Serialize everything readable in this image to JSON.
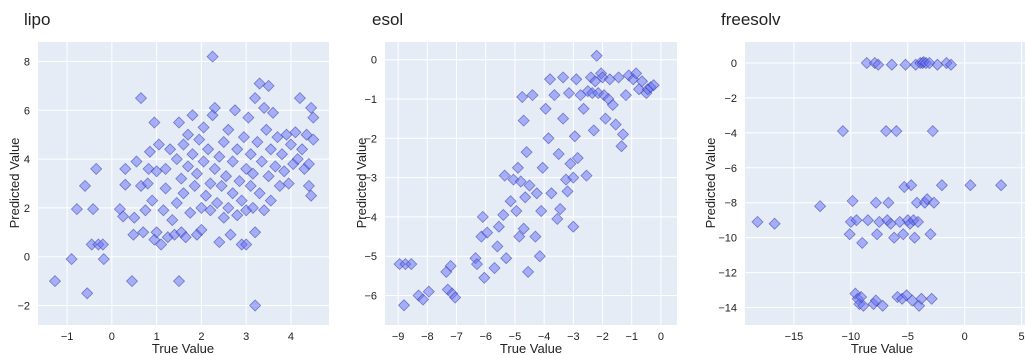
{
  "colors": {
    "plot_bg": "#e5ecf6",
    "grid": "#ffffff",
    "marker_fill": "#636efa",
    "marker_stroke": "#3a3fa3"
  },
  "chart_data": [
    {
      "type": "scatter",
      "title": "lipo",
      "xlabel": "True Value",
      "ylabel": "Predicted Value",
      "xlim": [
        -1.65,
        4.85
      ],
      "ylim": [
        -2.8,
        8.8
      ],
      "xticks": [
        -1,
        0,
        1,
        2,
        3,
        4
      ],
      "yticks": [
        -2,
        0,
        2,
        4,
        6,
        8
      ],
      "grid": true,
      "marker": "diamond",
      "points": [
        [
          -1.27,
          -1.0
        ],
        [
          -0.9,
          -0.1
        ],
        [
          -0.78,
          1.95
        ],
        [
          -0.6,
          2.9
        ],
        [
          -0.55,
          -1.5
        ],
        [
          -0.45,
          0.5
        ],
        [
          -0.42,
          1.95
        ],
        [
          -0.35,
          3.6
        ],
        [
          -0.3,
          0.5
        ],
        [
          -0.2,
          0.5
        ],
        [
          -0.18,
          -0.1
        ],
        [
          0.18,
          1.95
        ],
        [
          0.25,
          1.65
        ],
        [
          0.3,
          2.95
        ],
        [
          0.3,
          3.6
        ],
        [
          0.45,
          -1.0
        ],
        [
          0.48,
          0.9
        ],
        [
          0.5,
          1.6
        ],
        [
          0.55,
          3.9
        ],
        [
          0.65,
          6.5
        ],
        [
          0.65,
          2.9
        ],
        [
          0.7,
          1.0
        ],
        [
          0.75,
          1.9
        ],
        [
          0.8,
          3.0
        ],
        [
          0.82,
          3.6
        ],
        [
          0.85,
          4.3
        ],
        [
          0.9,
          2.3
        ],
        [
          0.95,
          5.5
        ],
        [
          0.95,
          0.7
        ],
        [
          1.0,
          1.0
        ],
        [
          1.0,
          3.5
        ],
        [
          1.05,
          4.6
        ],
        [
          1.1,
          0.5
        ],
        [
          1.15,
          1.9
        ],
        [
          1.2,
          2.8
        ],
        [
          1.2,
          3.6
        ],
        [
          1.25,
          0.8
        ],
        [
          1.3,
          4.4
        ],
        [
          1.35,
          1.5
        ],
        [
          1.4,
          0.9
        ],
        [
          1.45,
          2.2
        ],
        [
          1.45,
          4.0
        ],
        [
          1.5,
          5.5
        ],
        [
          1.5,
          -1.0
        ],
        [
          1.55,
          3.2
        ],
        [
          1.55,
          1.0
        ],
        [
          1.6,
          2.6
        ],
        [
          1.6,
          4.6
        ],
        [
          1.65,
          0.8
        ],
        [
          1.7,
          3.7
        ],
        [
          1.7,
          5.0
        ],
        [
          1.75,
          1.8
        ],
        [
          1.8,
          4.2
        ],
        [
          1.8,
          5.8
        ],
        [
          1.85,
          2.9
        ],
        [
          1.9,
          0.9
        ],
        [
          1.9,
          3.4
        ],
        [
          1.95,
          4.8
        ],
        [
          2.0,
          2.0
        ],
        [
          2.0,
          1.1
        ],
        [
          2.05,
          3.9
        ],
        [
          2.05,
          5.3
        ],
        [
          2.1,
          2.5
        ],
        [
          2.15,
          4.4
        ],
        [
          2.2,
          3.0
        ],
        [
          2.2,
          1.9
        ],
        [
          2.25,
          8.2
        ],
        [
          2.25,
          5.8
        ],
        [
          2.3,
          3.6
        ],
        [
          2.3,
          6.1
        ],
        [
          2.35,
          2.2
        ],
        [
          2.4,
          4.1
        ],
        [
          2.4,
          0.6
        ],
        [
          2.45,
          2.9
        ],
        [
          2.5,
          4.7
        ],
        [
          2.5,
          1.6
        ],
        [
          2.55,
          3.3
        ],
        [
          2.6,
          2.0
        ],
        [
          2.6,
          5.2
        ],
        [
          2.65,
          0.9
        ],
        [
          2.7,
          3.9
        ],
        [
          2.7,
          2.6
        ],
        [
          2.75,
          6.0
        ],
        [
          2.8,
          4.4
        ],
        [
          2.8,
          1.7
        ],
        [
          2.85,
          3.1
        ],
        [
          2.9,
          2.3
        ],
        [
          2.9,
          0.5
        ],
        [
          2.95,
          4.9
        ],
        [
          3.0,
          3.6
        ],
        [
          3.0,
          1.9
        ],
        [
          3.0,
          0.5
        ],
        [
          3.05,
          5.7
        ],
        [
          3.1,
          2.9
        ],
        [
          3.1,
          4.2
        ],
        [
          3.15,
          2.0
        ],
        [
          3.15,
          3.4
        ],
        [
          3.2,
          -2.0
        ],
        [
          3.2,
          1.0
        ],
        [
          3.2,
          6.5
        ],
        [
          3.25,
          4.7
        ],
        [
          3.3,
          2.6
        ],
        [
          3.3,
          7.1
        ],
        [
          3.35,
          3.9
        ],
        [
          3.4,
          6.1
        ],
        [
          3.4,
          1.9
        ],
        [
          3.45,
          5.2
        ],
        [
          3.5,
          7.0
        ],
        [
          3.5,
          3.3
        ],
        [
          3.55,
          4.4
        ],
        [
          3.55,
          2.3
        ],
        [
          3.6,
          5.9
        ],
        [
          3.65,
          3.7
        ],
        [
          3.7,
          4.9
        ],
        [
          3.75,
          2.9
        ],
        [
          3.8,
          4.2
        ],
        [
          3.85,
          3.5
        ],
        [
          3.9,
          5.0
        ],
        [
          3.95,
          3.0
        ],
        [
          4.0,
          4.6
        ],
        [
          4.05,
          3.8
        ],
        [
          4.1,
          5.1
        ],
        [
          4.15,
          4.0
        ],
        [
          4.2,
          6.5
        ],
        [
          4.25,
          4.4
        ],
        [
          4.3,
          3.6
        ],
        [
          4.35,
          5.0
        ],
        [
          4.4,
          3.8
        ],
        [
          4.45,
          6.1
        ],
        [
          4.45,
          2.5
        ],
        [
          4.5,
          5.7
        ],
        [
          4.5,
          4.8
        ],
        [
          4.4,
          2.9
        ]
      ]
    },
    {
      "type": "scatter",
      "title": "esol",
      "xlabel": "True Value",
      "ylabel": "Predicted Value",
      "xlim": [
        -9.45,
        0.55
      ],
      "ylim": [
        -6.75,
        0.45
      ],
      "xticks": [
        -9,
        -8,
        -7,
        -6,
        -5,
        -4,
        -3,
        -2,
        -1,
        0
      ],
      "yticks": [
        -6,
        -5,
        -4,
        -3,
        -2,
        -1,
        0
      ],
      "grid": true,
      "marker": "diamond",
      "points": [
        [
          -8.95,
          -5.2
        ],
        [
          -8.8,
          -6.25
        ],
        [
          -8.75,
          -5.2
        ],
        [
          -8.55,
          -5.2
        ],
        [
          -8.3,
          -6.0
        ],
        [
          -8.15,
          -6.1
        ],
        [
          -7.95,
          -5.9
        ],
        [
          -7.35,
          -5.4
        ],
        [
          -7.3,
          -5.85
        ],
        [
          -7.2,
          -5.25
        ],
        [
          -7.15,
          -5.95
        ],
        [
          -7.05,
          -6.05
        ],
        [
          -6.35,
          -5.05
        ],
        [
          -6.3,
          -5.2
        ],
        [
          -6.15,
          -4.5
        ],
        [
          -6.1,
          -4.0
        ],
        [
          -6.05,
          -5.55
        ],
        [
          -5.95,
          -4.4
        ],
        [
          -5.7,
          -5.3
        ],
        [
          -5.6,
          -4.75
        ],
        [
          -5.55,
          -4.25
        ],
        [
          -5.4,
          -3.95
        ],
        [
          -5.35,
          -2.95
        ],
        [
          -5.3,
          -5.05
        ],
        [
          -5.15,
          -3.6
        ],
        [
          -5.05,
          -3.05
        ],
        [
          -4.95,
          -3.85
        ],
        [
          -4.9,
          -2.75
        ],
        [
          -4.85,
          -4.5
        ],
        [
          -4.8,
          -3.1
        ],
        [
          -4.75,
          -0.95
        ],
        [
          -4.7,
          -1.55
        ],
        [
          -4.7,
          -4.3
        ],
        [
          -4.65,
          -3.5
        ],
        [
          -4.6,
          -2.35
        ],
        [
          -4.55,
          -5.4
        ],
        [
          -4.5,
          -3.2
        ],
        [
          -4.4,
          -0.9
        ],
        [
          -4.3,
          -4.5
        ],
        [
          -4.25,
          -3.4
        ],
        [
          -4.15,
          -5.0
        ],
        [
          -4.1,
          -3.85
        ],
        [
          -4.05,
          -2.75
        ],
        [
          -3.95,
          -1.25
        ],
        [
          -3.85,
          -2.0
        ],
        [
          -3.8,
          -0.5
        ],
        [
          -3.75,
          -3.4
        ],
        [
          -3.65,
          -0.9
        ],
        [
          -3.55,
          -4.05
        ],
        [
          -3.5,
          -2.4
        ],
        [
          -3.45,
          -3.8
        ],
        [
          -3.35,
          -0.45
        ],
        [
          -3.35,
          -1.5
        ],
        [
          -3.25,
          -3.05
        ],
        [
          -3.2,
          -3.35
        ],
        [
          -3.15,
          -0.85
        ],
        [
          -3.1,
          -2.65
        ],
        [
          -3.0,
          -4.25
        ],
        [
          -3.0,
          -3.0
        ],
        [
          -2.95,
          -1.95
        ],
        [
          -2.9,
          -0.5
        ],
        [
          -2.85,
          -2.5
        ],
        [
          -2.75,
          -0.9
        ],
        [
          -2.65,
          -1.25
        ],
        [
          -2.55,
          -2.95
        ],
        [
          -2.5,
          -0.8
        ],
        [
          -2.4,
          -0.45
        ],
        [
          -2.35,
          -0.85
        ],
        [
          -2.3,
          -1.8
        ],
        [
          -2.25,
          -0.55
        ],
        [
          -2.2,
          0.1
        ],
        [
          -2.15,
          -0.85
        ],
        [
          -2.05,
          -0.35
        ],
        [
          -2.0,
          -0.45
        ],
        [
          -1.95,
          -0.9
        ],
        [
          -1.9,
          -1.5
        ],
        [
          -1.8,
          -1.0
        ],
        [
          -1.75,
          -0.5
        ],
        [
          -1.65,
          -1.15
        ],
        [
          -1.55,
          -1.65
        ],
        [
          -1.45,
          -0.45
        ],
        [
          -1.35,
          -2.2
        ],
        [
          -1.3,
          -1.9
        ],
        [
          -1.2,
          -0.9
        ],
        [
          -1.1,
          -0.4
        ],
        [
          -0.95,
          -0.5
        ],
        [
          -0.85,
          -0.35
        ],
        [
          -0.75,
          -0.75
        ],
        [
          -0.65,
          -0.55
        ],
        [
          -0.5,
          -0.85
        ],
        [
          -0.45,
          -0.75
        ],
        [
          -0.35,
          -0.7
        ],
        [
          -0.25,
          -0.65
        ]
      ]
    },
    {
      "type": "scatter",
      "title": "freesolv",
      "xlabel": "True Value",
      "ylabel": "Predicted Value",
      "xlim": [
        -19.3,
        5.3
      ],
      "ylim": [
        -15.0,
        1.2
      ],
      "xticks": [
        -15,
        -10,
        -5,
        0,
        5
      ],
      "yticks": [
        -14,
        -12,
        -10,
        -8,
        -6,
        -4,
        -2,
        0
      ],
      "grid": true,
      "marker": "diamond",
      "points": [
        [
          -18.2,
          -9.1
        ],
        [
          -16.7,
          -9.2
        ],
        [
          -12.7,
          -8.2
        ],
        [
          -10.7,
          -3.9
        ],
        [
          -10.1,
          -9.8
        ],
        [
          -10.0,
          -9.1
        ],
        [
          -9.85,
          -7.9
        ],
        [
          -9.6,
          -13.2
        ],
        [
          -9.5,
          -9.0
        ],
        [
          -9.4,
          -13.5
        ],
        [
          -9.25,
          -13.8
        ],
        [
          -9.1,
          -13.4
        ],
        [
          -9.0,
          -10.3
        ],
        [
          -8.9,
          -13.9
        ],
        [
          -8.6,
          0.0
        ],
        [
          -8.5,
          -9.0
        ],
        [
          -8.0,
          -13.8
        ],
        [
          -7.9,
          0.0
        ],
        [
          -7.8,
          -13.6
        ],
        [
          -7.8,
          -8.0
        ],
        [
          -7.7,
          -9.8
        ],
        [
          -7.6,
          -0.1
        ],
        [
          -7.5,
          -9.1
        ],
        [
          -7.2,
          -13.9
        ],
        [
          -6.9,
          -3.9
        ],
        [
          -6.8,
          -9.0
        ],
        [
          -6.7,
          -8.0
        ],
        [
          -6.5,
          -9.2
        ],
        [
          -6.4,
          -0.1
        ],
        [
          -6.2,
          -10.0
        ],
        [
          -6.0,
          -3.9
        ],
        [
          -5.9,
          -13.4
        ],
        [
          -5.7,
          -9.1
        ],
        [
          -5.5,
          -13.5
        ],
        [
          -5.4,
          -9.8
        ],
        [
          -5.3,
          -7.1
        ],
        [
          -5.2,
          -0.1
        ],
        [
          -5.1,
          -13.3
        ],
        [
          -5.0,
          -9.0
        ],
        [
          -4.8,
          -9.2
        ],
        [
          -4.7,
          -7.0
        ],
        [
          -4.6,
          -13.6
        ],
        [
          -4.5,
          -9.0
        ],
        [
          -4.4,
          -10.0
        ],
        [
          -4.3,
          -0.1
        ],
        [
          -4.2,
          -8.0
        ],
        [
          -4.1,
          -9.1
        ],
        [
          -4.0,
          -13.9
        ],
        [
          -3.9,
          0.0
        ],
        [
          -3.8,
          -13.5
        ],
        [
          -3.7,
          0.0
        ],
        [
          -3.6,
          0.05
        ],
        [
          -3.5,
          -8.0
        ],
        [
          -3.4,
          0.0
        ],
        [
          -3.3,
          -7.8
        ],
        [
          -3.1,
          0.0
        ],
        [
          -3.0,
          -9.8
        ],
        [
          -2.9,
          -13.5
        ],
        [
          -2.8,
          -3.9
        ],
        [
          -2.7,
          -8.0
        ],
        [
          -2.4,
          -0.1
        ],
        [
          -2.0,
          -7.0
        ],
        [
          -1.6,
          0.0
        ],
        [
          -1.2,
          -0.1
        ],
        [
          0.5,
          -7.0
        ],
        [
          3.2,
          -7.0
        ]
      ]
    }
  ]
}
